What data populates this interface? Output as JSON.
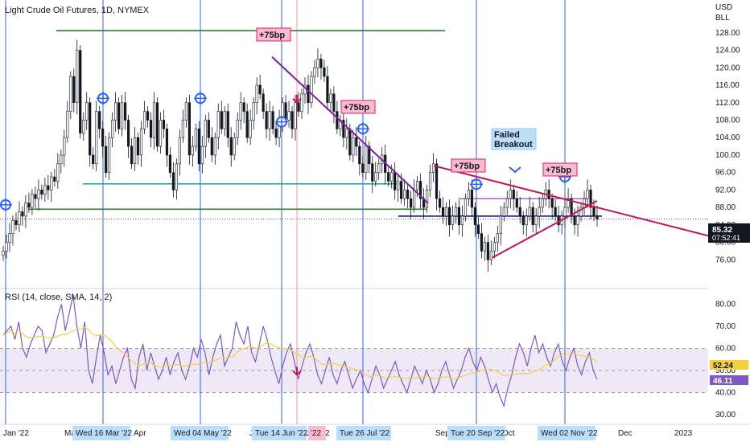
{
  "chart_data": {
    "type": "candlestick",
    "title": "Light Crude Oil Futures, 1D, NYMEX",
    "y_axis": {
      "currency": "USD",
      "unit": "BLL",
      "ticks": [
        "76.00",
        "80.00",
        "84.00",
        "88.00",
        "92.00",
        "96.00",
        "100.00",
        "104.00",
        "108.00",
        "112.00",
        "116.00",
        "120.00",
        "124.00",
        "128.00"
      ],
      "range": [
        72,
        130
      ]
    },
    "x_axis": {
      "ticks": [
        "Jan '22",
        "Mar",
        "Apr",
        "Jun",
        "Jul '22",
        "Sep",
        "Oct",
        "Dec",
        "2023"
      ],
      "highlighted": [
        "Wed 16 Mar '22",
        "Wed 04 May '22",
        "Tue 14 Jun '22",
        "Tue 26 Jul '22",
        "Tue 20 Sep '22",
        "Wed 02 Nov '22"
      ],
      "marker": "'22"
    },
    "last_price": {
      "value": "85.32",
      "countdown": "07:52:41"
    },
    "rate_hikes": [
      "+75bp",
      "+75bp",
      "+75bp",
      "+75bp"
    ],
    "annotation": "Failed\nBreakout",
    "closes": [
      78,
      80,
      82,
      85,
      84,
      87,
      86,
      89,
      88,
      91,
      90,
      92,
      91,
      93,
      92,
      95,
      94,
      98,
      100,
      104,
      110,
      118,
      112,
      124,
      105,
      108,
      112,
      100,
      98,
      110,
      106,
      102,
      96,
      104,
      108,
      112,
      106,
      112,
      108,
      102,
      98,
      104,
      100,
      106,
      110,
      108,
      104,
      112,
      102,
      108,
      106,
      100,
      96,
      92,
      98,
      104,
      108,
      112,
      100,
      102,
      106,
      98,
      102,
      108,
      104,
      100,
      104,
      110,
      106,
      110,
      104,
      100,
      104,
      108,
      112,
      110,
      104,
      108,
      112,
      116,
      114,
      110,
      106,
      110,
      106,
      104,
      108,
      112,
      108,
      110,
      106,
      112,
      110,
      114,
      116,
      112,
      118,
      120,
      122,
      120,
      118,
      112,
      114,
      110,
      106,
      108,
      104,
      106,
      100,
      104,
      102,
      98,
      96,
      102,
      98,
      94,
      96,
      98,
      100,
      96,
      94,
      96,
      92,
      94,
      90,
      92,
      90,
      88,
      92,
      94,
      90,
      88,
      92,
      96,
      98,
      90,
      88,
      86,
      88,
      84,
      86,
      88,
      84,
      86,
      90,
      92,
      88,
      84,
      82,
      78,
      80,
      76,
      78,
      80,
      82,
      86,
      88,
      90,
      92,
      90,
      88,
      86,
      84,
      86,
      88,
      84,
      86,
      88,
      90,
      92,
      90,
      88,
      86,
      84,
      86,
      88,
      90,
      86,
      84,
      86,
      88,
      90,
      92,
      88,
      86,
      85.32
    ],
    "rsi": {
      "label": "RSI (14, close, SMA, 14, 2)",
      "ticks": [
        "30.00",
        "40.00",
        "50.00",
        "60.00",
        "70.00",
        "80.00"
      ],
      "range": [
        26,
        86
      ],
      "band": [
        40,
        60
      ],
      "values": [
        66,
        68,
        70,
        64,
        72,
        60,
        56,
        62,
        66,
        70,
        68,
        58,
        62,
        66,
        74,
        80,
        68,
        76,
        84,
        70,
        60,
        72,
        50,
        44,
        56,
        66,
        58,
        48,
        52,
        44,
        50,
        56,
        60,
        46,
        42,
        56,
        62,
        50,
        58,
        52,
        46,
        50,
        56,
        48,
        54,
        58,
        50,
        46,
        52,
        60,
        56,
        64,
        58,
        48,
        56,
        62,
        66,
        52,
        56,
        60,
        72,
        66,
        62,
        70,
        58,
        54,
        62,
        70,
        64,
        56,
        50,
        44,
        52,
        58,
        62,
        54,
        46,
        52,
        58,
        62,
        56,
        48,
        44,
        50,
        56,
        48,
        44,
        50,
        54,
        48,
        42,
        46,
        50,
        44,
        40,
        46,
        52,
        48,
        42,
        46,
        50,
        54,
        48,
        44,
        40,
        46,
        52,
        48,
        44,
        50,
        46,
        40,
        44,
        50,
        54,
        48,
        42,
        46,
        50,
        56,
        60,
        54,
        50,
        56,
        52,
        46,
        40,
        44,
        38,
        34,
        42,
        48,
        56,
        62,
        58,
        52,
        60,
        66,
        58,
        62,
        56,
        52,
        58,
        62,
        54,
        50,
        56,
        60,
        52,
        48,
        54,
        58,
        50,
        46
      ],
      "last_value": "46.11",
      "signal_value": "52.24"
    }
  }
}
